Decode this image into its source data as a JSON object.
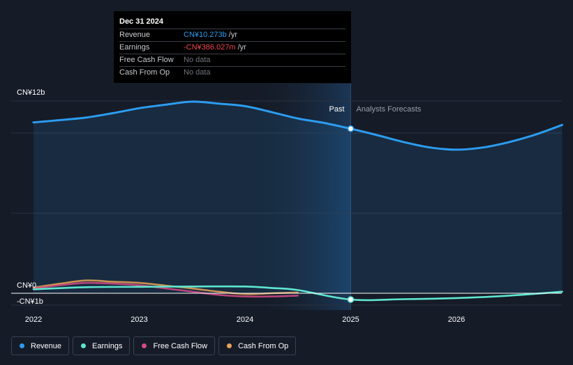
{
  "tooltip": {
    "date": "Dec 31 2024",
    "rows": [
      {
        "label": "Revenue",
        "value": "CN¥10.273b",
        "unit": "/yr",
        "color": "#2d9cf0"
      },
      {
        "label": "Earnings",
        "value": "-CN¥386.027m",
        "unit": "/yr",
        "color": "#f0454d"
      },
      {
        "label": "Free Cash Flow",
        "value": "No data",
        "unit": "",
        "color": "#6f747c"
      },
      {
        "label": "Cash From Op",
        "value": "No data",
        "unit": "",
        "color": "#6f747c"
      }
    ]
  },
  "legend": [
    {
      "label": "Revenue",
      "color": "#2d9cf0"
    },
    {
      "label": "Earnings",
      "color": "#5ee6d0"
    },
    {
      "label": "Free Cash Flow",
      "color": "#d64b86"
    },
    {
      "label": "Cash From Op",
      "color": "#e8a356"
    }
  ],
  "chart_data": {
    "type": "line",
    "title": "",
    "xlabel": "",
    "ylabel": "",
    "x_ticks": [
      2022,
      2023,
      2024,
      2025,
      2026
    ],
    "y_tick_labels": [
      {
        "value": 12,
        "label": "CN¥12b"
      },
      {
        "value": 0,
        "label": "CN¥0"
      },
      {
        "value": -1,
        "label": "-CN¥1b"
      }
    ],
    "xlim": [
      2021.8,
      2027.0
    ],
    "ylim": [
      -1.0,
      12.0
    ],
    "divider_x": 2025.0,
    "regions": {
      "past": "Past",
      "forecast": "Analysts Forecasts"
    },
    "grid": true,
    "legend_position": "bottom-left",
    "series": [
      {
        "name": "Revenue",
        "color": "#2d9cf0",
        "fill": true,
        "x": [
          2022.0,
          2022.25,
          2022.5,
          2022.75,
          2023.0,
          2023.25,
          2023.5,
          2023.75,
          2024.0,
          2024.25,
          2024.5,
          2024.75,
          2025.0,
          2025.25,
          2025.5,
          2025.75,
          2026.0,
          2026.25,
          2026.5,
          2026.75,
          2027.0
        ],
        "y": [
          10.66,
          10.81,
          10.97,
          11.24,
          11.55,
          11.77,
          11.96,
          11.84,
          11.68,
          11.31,
          10.91,
          10.63,
          10.27,
          9.87,
          9.44,
          9.1,
          8.96,
          9.1,
          9.44,
          9.91,
          10.51
        ],
        "highlight": {
          "x": 2025.0,
          "y": 10.27
        }
      },
      {
        "name": "Earnings",
        "color": "#5ee6d0",
        "x": [
          2022.0,
          2022.5,
          2023.0,
          2023.5,
          2024.0,
          2024.25,
          2024.5,
          2025.0,
          2025.5,
          2026.0,
          2026.5,
          2027.0
        ],
        "y": [
          0.25,
          0.38,
          0.4,
          0.42,
          0.42,
          0.33,
          0.2,
          -0.39,
          -0.37,
          -0.3,
          -0.15,
          0.1
        ],
        "highlight": {
          "x": 2025.0,
          "y": -0.39
        }
      },
      {
        "name": "Free Cash Flow",
        "color": "#d64b86",
        "x": [
          2022.0,
          2022.25,
          2022.5,
          2022.75,
          2023.0,
          2023.25,
          2023.5,
          2023.75,
          2024.0,
          2024.25,
          2024.5
        ],
        "y": [
          0.3,
          0.5,
          0.65,
          0.6,
          0.5,
          0.3,
          0.1,
          -0.1,
          -0.2,
          -0.2,
          -0.15
        ]
      },
      {
        "name": "Cash From Op",
        "color": "#e8a356",
        "x": [
          2022.0,
          2022.25,
          2022.5,
          2022.75,
          2023.0,
          2023.25,
          2023.5,
          2023.75,
          2024.0,
          2024.25,
          2024.5
        ],
        "y": [
          0.35,
          0.6,
          0.8,
          0.72,
          0.65,
          0.48,
          0.3,
          0.1,
          -0.05,
          0.0,
          0.05
        ]
      }
    ]
  }
}
